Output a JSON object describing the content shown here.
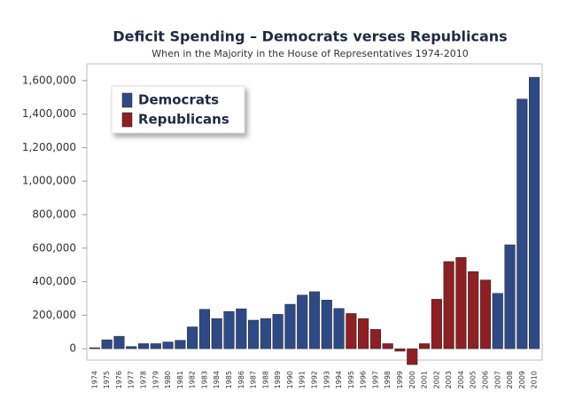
{
  "chart_data": {
    "type": "bar",
    "title": "Deficit Spending – Democrats verses Republicans",
    "subtitle": "When in the Majority in the House of Representatives 1974-2010",
    "categories": [
      "1974",
      "1975",
      "1976",
      "1977",
      "1978",
      "1979",
      "1980",
      "1981",
      "1982",
      "1983",
      "1984",
      "1985",
      "1986",
      "1987",
      "1988",
      "1989",
      "1990",
      "1991",
      "1992",
      "1993",
      "1994",
      "1995",
      "1996",
      "1997",
      "1998",
      "1999",
      "2000",
      "2001",
      "2002",
      "2003",
      "2004",
      "2005",
      "2006",
      "2007",
      "2008",
      "2009",
      "2010"
    ],
    "series": [
      {
        "name": "Democrats",
        "color": "#2e4a86",
        "values": [
          6000,
          53000,
          74000,
          13000,
          30000,
          30000,
          40000,
          50000,
          130000,
          235000,
          180000,
          222000,
          238000,
          170000,
          180000,
          205000,
          265000,
          320000,
          340000,
          290000,
          240000,
          null,
          null,
          null,
          null,
          null,
          null,
          null,
          null,
          null,
          null,
          null,
          null,
          330000,
          620000,
          1490000,
          1620000
        ]
      },
      {
        "name": "Republicans",
        "color": "#8e1f22",
        "values": [
          null,
          null,
          null,
          null,
          null,
          null,
          null,
          null,
          null,
          null,
          null,
          null,
          null,
          null,
          null,
          null,
          null,
          null,
          null,
          null,
          null,
          210000,
          180000,
          115000,
          30000,
          -15000,
          -95000,
          30000,
          295000,
          520000,
          545000,
          460000,
          410000,
          null,
          null,
          null,
          null
        ]
      }
    ],
    "ylim": [
      -100000,
      1700000
    ],
    "yticks": [
      0,
      {
        "value": 200000,
        "label": "200,000"
      },
      {
        "value": 400000,
        "label": "400,000"
      },
      {
        "value": 600000,
        "label": "600,000"
      },
      {
        "value": 800000,
        "label": "800,000"
      },
      {
        "value": 1000000,
        "label": "1,000,000"
      },
      {
        "value": 1200000,
        "label": "1,200,000"
      },
      {
        "value": 1400000,
        "label": "1,400,000"
      },
      {
        "value": 1600000,
        "label": "1,600,000"
      }
    ],
    "legend": "upper-left"
  }
}
